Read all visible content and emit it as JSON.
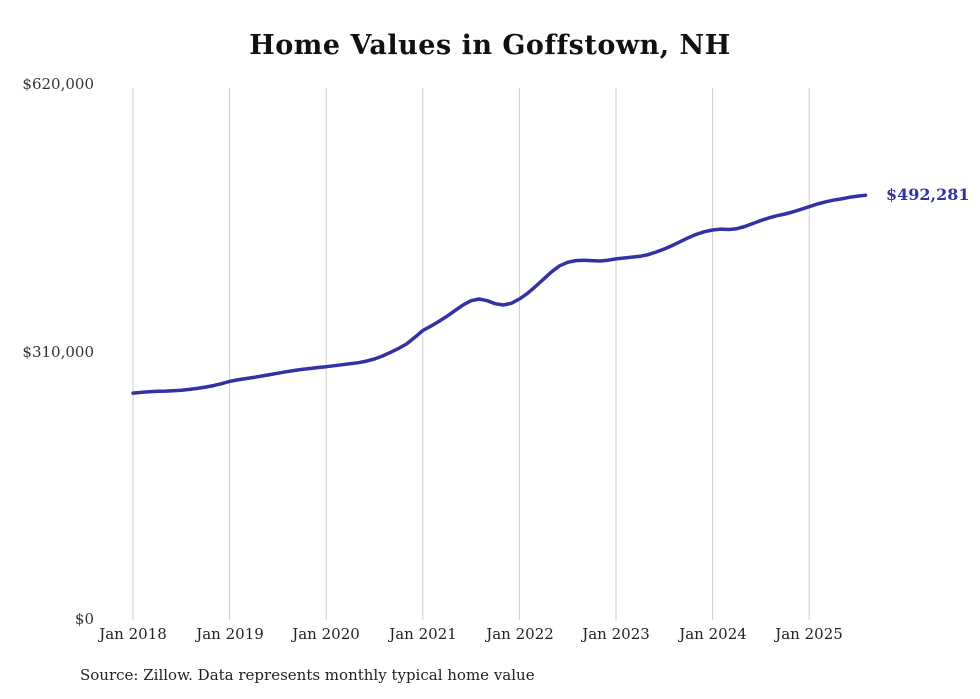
{
  "chart_data": {
    "type": "line",
    "title": "Home Values in Goffstown, NH",
    "xlabel": "",
    "ylabel": "",
    "ylim": [
      0,
      620000
    ],
    "grid": "vertical-only",
    "legend": "none",
    "line_color": "#3431a6",
    "grid_color": "#cccccc",
    "x_tick_labels": [
      "Jan 2018",
      "Jan 2019",
      "Jan 2020",
      "Jan 2021",
      "Jan 2022",
      "Jan 2023",
      "Jan 2024",
      "Jan 2025"
    ],
    "y_tick_labels": [
      "$620,000",
      "$310,000",
      "$0"
    ],
    "y_tick_values": [
      620000,
      310000,
      0
    ],
    "x_start": "Jan 2018",
    "x_interval": "monthly",
    "end_value": 492281,
    "end_label": "$492,281",
    "source": "Source: Zillow. Data represents monthly typical home value",
    "series": [
      {
        "name": "Typical home value",
        "values": [
          263000,
          263800,
          264500,
          265000,
          265300,
          265700,
          266300,
          267200,
          268400,
          269900,
          271600,
          273800,
          276500,
          278300,
          279800,
          281200,
          282800,
          284400,
          286000,
          287600,
          289100,
          290400,
          291500,
          292600,
          293600,
          294700,
          295900,
          297000,
          298200,
          300000,
          302500,
          306000,
          310200,
          314800,
          320000,
          327500,
          335500,
          340500,
          346000,
          352000,
          358500,
          365000,
          370000,
          372000,
          370000,
          366500,
          365000,
          367000,
          372000,
          378500,
          386500,
          395000,
          403500,
          410500,
          414500,
          416500,
          417000,
          416500,
          416000,
          417000,
          418500,
          419500,
          420500,
          421500,
          423500,
          426500,
          430000,
          434000,
          438500,
          443000,
          447000,
          450000,
          452000,
          453000,
          452500,
          453500,
          456000,
          459500,
          463000,
          466000,
          468500,
          470500,
          473000,
          476000,
          479000,
          482000,
          484500,
          486500,
          488000,
          489800,
          491200,
          492281
        ]
      }
    ]
  }
}
